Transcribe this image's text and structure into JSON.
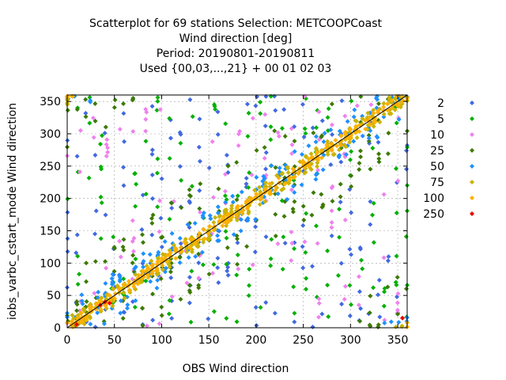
{
  "chart_data": {
    "type": "scatter",
    "title_lines": [
      "Scatterplot for   69 stations Selection: METCOOPCoast",
      "Wind direction [deg]",
      "Period: 20190801-20190811",
      "Used {00,03,...,21} + 00 01 02 03"
    ],
    "xlabel": "OBS Wind direction",
    "ylabel": "iobs_varbc_cstart_mode Wind direction",
    "xlim": [
      0,
      360
    ],
    "ylim": [
      0,
      360
    ],
    "xticks": [
      0,
      50,
      100,
      150,
      200,
      250,
      300,
      350
    ],
    "yticks": [
      0,
      50,
      100,
      150,
      200,
      250,
      300,
      350
    ],
    "grid": true,
    "legend_position": "right",
    "reference_line": [
      [
        0,
        0
      ],
      [
        360,
        360
      ]
    ],
    "series": [
      {
        "name": "2",
        "color": "#4169e1",
        "band": 180,
        "step": 10
      },
      {
        "name": "5",
        "color": "#00b000",
        "band": 180,
        "step": 12
      },
      {
        "name": "10",
        "color": "#ee82ee",
        "band": 140,
        "step": 14
      },
      {
        "name": "25",
        "color": "#3c7a00",
        "band": 90,
        "step": 10
      },
      {
        "name": "50",
        "color": "#1e90ff",
        "band": 35,
        "step": 8
      },
      {
        "name": "75",
        "color": "#c8b400",
        "band": 15,
        "step": 6
      },
      {
        "name": "100",
        "color": "#ffb000",
        "band": 8,
        "step": 5
      },
      {
        "name": "250",
        "color": "#ee0000",
        "points": [
          [
            10,
            5
          ],
          [
            35,
            35
          ],
          [
            40,
            40
          ],
          [
            45,
            38
          ],
          [
            355,
            15
          ]
        ]
      }
    ]
  }
}
